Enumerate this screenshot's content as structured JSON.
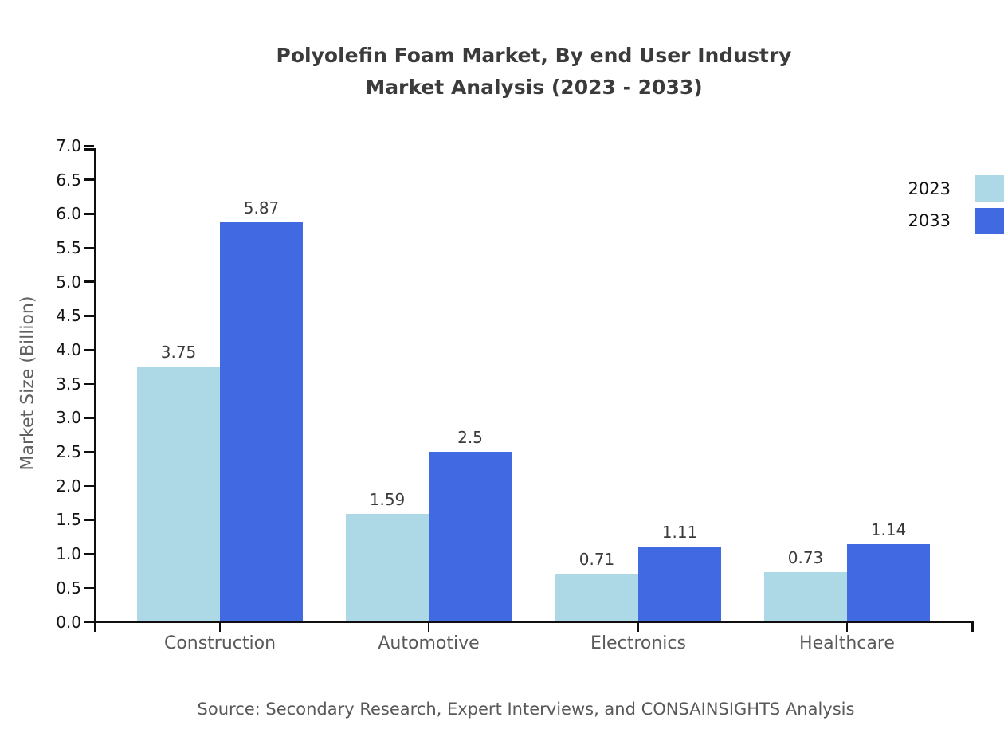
{
  "title": {
    "line1": "Polyolefin Foam Market, By end User Industry",
    "line2": "Market Analysis (2023 - 2033)"
  },
  "y_axis": {
    "label": "Market Size (Billion)",
    "tick_labels": [
      "0.0",
      "0.5",
      "1.0",
      "1.5",
      "2.0",
      "2.5",
      "3.0",
      "3.5",
      "4.0",
      "4.5",
      "5.0",
      "5.5",
      "6.0",
      "6.5",
      "7.0"
    ]
  },
  "chart_data": {
    "type": "bar",
    "title": "Polyolefin Foam Market, By end User Industry Market Analysis (2023 - 2033)",
    "categories": [
      "Construction",
      "Automotive",
      "Electronics",
      "Healthcare"
    ],
    "series": [
      {
        "name": "2023",
        "color": "#ADD8E6",
        "values": [
          3.75,
          1.59,
          0.71,
          0.73
        ],
        "labels": [
          "3.75",
          "1.59",
          "0.71",
          "0.73"
        ]
      },
      {
        "name": "2033",
        "color": "#4169E1",
        "values": [
          5.87,
          2.5,
          1.11,
          1.14
        ],
        "labels": [
          "5.87",
          "2.5",
          "1.11",
          "1.14"
        ]
      }
    ],
    "xlabel": "",
    "ylabel": "Market Size (Billion)",
    "ylim": [
      0.0,
      7.0
    ],
    "ytick_step": 0.5,
    "grid": false,
    "legend_position": "upper-right",
    "bar_value_labels_shown": true
  },
  "legend": {
    "items": [
      {
        "label": "2023",
        "color": "#ADD8E6"
      },
      {
        "label": "2033",
        "color": "#4169E1"
      }
    ]
  },
  "source_note": "Source: Secondary Research, Expert Interviews, and CONSAINSIGHTS Analysis",
  "colors": {
    "bar_2023": "#ADD8E6",
    "bar_2033": "#4169E1",
    "title_text": "#3B3B3B",
    "value_label_text": "#3B3B3B",
    "tick_label_text": "#141414",
    "category_text": "#595959",
    "source_text": "#595959",
    "y_axis_label_text": "#616161",
    "axis_line": "#0F0F0F",
    "background": "#FFFFFF"
  }
}
